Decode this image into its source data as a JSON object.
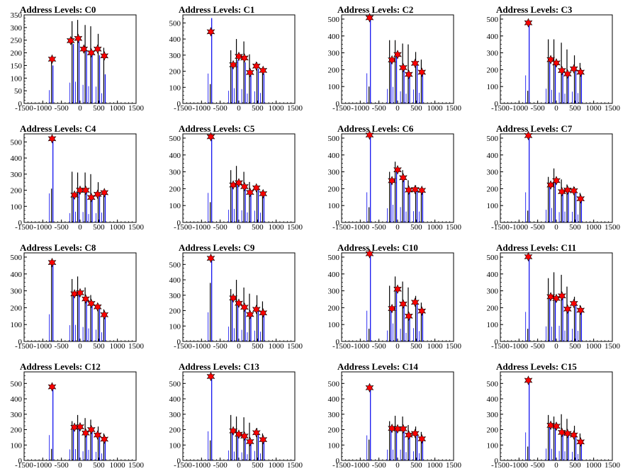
{
  "chart_data": [
    {
      "type": "bar",
      "title": "Address Levels: C0",
      "ylim": [
        0,
        350
      ],
      "yticks": [
        0,
        50,
        100,
        150,
        200,
        250,
        300,
        350
      ],
      "xlim": [
        -1500,
        1500
      ],
      "xticks": [
        -1500,
        -1000,
        -500,
        0,
        500,
        1000,
        1500
      ],
      "spikes": {
        "x": [
          -750,
          -200,
          -50,
          150,
          300,
          500,
          650
        ],
        "black": [
          165,
          325,
          330,
          310,
          305,
          275,
          220
        ],
        "blue": [
          150,
          235,
          245,
          210,
          195,
          190,
          115
        ]
      },
      "markers": {
        "x": [
          -750,
          -250,
          -50,
          100,
          300,
          470,
          650
        ],
        "y": [
          175,
          248,
          257,
          215,
          200,
          215,
          188
        ]
      }
    },
    {
      "type": "bar",
      "title": "Address Levels: C1",
      "ylim": [
        0,
        550
      ],
      "yticks": [
        0,
        100,
        200,
        300,
        400,
        500
      ],
      "xlim": [
        -1500,
        1500
      ],
      "xticks": [
        -1500,
        -1000,
        -500,
        0,
        500,
        1000,
        1500
      ],
      "spikes": {
        "x": [
          -750,
          -200,
          -50,
          150,
          300,
          500,
          650
        ],
        "black": [
          120,
          330,
          400,
          385,
          305,
          255,
          215
        ],
        "blue": [
          530,
          225,
          270,
          255,
          175,
          215,
          185
        ]
      },
      "markers": {
        "x": [
          -750,
          -150,
          0,
          150,
          300,
          470,
          650
        ],
        "y": [
          445,
          240,
          292,
          282,
          192,
          232,
          205
        ]
      }
    },
    {
      "type": "bar",
      "title": "Address Levels: C2",
      "ylim": [
        0,
        525
      ],
      "yticks": [
        0,
        100,
        200,
        300,
        400,
        500
      ],
      "xlim": [
        -1500,
        1500
      ],
      "xticks": [
        -1500,
        -1000,
        -500,
        0,
        500,
        1000,
        1500
      ],
      "spikes": {
        "x": [
          -750,
          -200,
          -50,
          150,
          300,
          500,
          650
        ],
        "black": [
          100,
          375,
          375,
          355,
          350,
          305,
          260
        ],
        "blue": [
          510,
          245,
          280,
          205,
          165,
          235,
          180
        ]
      },
      "markers": {
        "x": [
          -750,
          -150,
          0,
          150,
          300,
          470,
          650
        ],
        "y": [
          508,
          258,
          290,
          212,
          172,
          238,
          185
        ]
      }
    },
    {
      "type": "bar",
      "title": "Address Levels: C3",
      "ylim": [
        0,
        525
      ],
      "yticks": [
        0,
        100,
        200,
        300,
        400,
        500
      ],
      "xlim": [
        -1500,
        1500
      ],
      "xticks": [
        -1500,
        -1000,
        -500,
        0,
        500,
        1000,
        1500
      ],
      "spikes": {
        "x": [
          -750,
          -200,
          -50,
          150,
          300,
          500,
          650
        ],
        "black": [
          75,
          380,
          380,
          360,
          320,
          285,
          240
        ],
        "blue": [
          475,
          250,
          230,
          185,
          165,
          200,
          175
        ]
      },
      "markers": {
        "x": [
          -750,
          -150,
          0,
          150,
          300,
          470,
          650
        ],
        "y": [
          478,
          260,
          240,
          195,
          175,
          205,
          185
        ]
      }
    },
    {
      "type": "bar",
      "title": "Address Levels: C4",
      "ylim": [
        0,
        550
      ],
      "yticks": [
        0,
        100,
        200,
        300,
        400,
        500
      ],
      "xlim": [
        -1500,
        1500
      ],
      "xticks": [
        -1500,
        -1000,
        -500,
        0,
        500,
        1000,
        1500
      ],
      "spikes": {
        "x": [
          -750,
          -200,
          -50,
          150,
          300,
          500,
          650
        ],
        "black": [
          210,
          315,
          310,
          310,
          300,
          250,
          190
        ],
        "blue": [
          515,
          165,
          190,
          185,
          150,
          165,
          175
        ]
      },
      "markers": {
        "x": [
          -750,
          -150,
          0,
          150,
          300,
          470,
          650
        ],
        "y": [
          520,
          170,
          200,
          200,
          155,
          175,
          185
        ]
      }
    },
    {
      "type": "bar",
      "title": "Address Levels: C5",
      "ylim": [
        0,
        525
      ],
      "yticks": [
        0,
        100,
        200,
        300,
        400,
        500
      ],
      "xlim": [
        -1500,
        1500
      ],
      "xticks": [
        -1500,
        -1000,
        -500,
        0,
        500,
        1000,
        1500
      ],
      "spikes": {
        "x": [
          -750,
          -200,
          -50,
          150,
          300,
          500,
          650
        ],
        "black": [
          120,
          310,
          335,
          300,
          240,
          220,
          190
        ],
        "blue": [
          500,
          215,
          230,
          205,
          170,
          200,
          165
        ]
      },
      "markers": {
        "x": [
          -750,
          -150,
          0,
          150,
          300,
          470,
          650
        ],
        "y": [
          508,
          222,
          235,
          212,
          178,
          205,
          170
        ]
      }
    },
    {
      "type": "bar",
      "title": "Address Levels: C6",
      "ylim": [
        0,
        525
      ],
      "yticks": [
        0,
        100,
        200,
        300,
        400,
        500
      ],
      "xlim": [
        -1500,
        1500
      ],
      "xticks": [
        -1500,
        -1000,
        -500,
        0,
        500,
        1000,
        1500
      ],
      "spikes": {
        "x": [
          -750,
          -200,
          -50,
          150,
          300,
          500,
          650
        ],
        "black": [
          90,
          300,
          360,
          310,
          250,
          220,
          200
        ],
        "blue": [
          510,
          240,
          300,
          260,
          185,
          190,
          185
        ]
      },
      "markers": {
        "x": [
          -750,
          -150,
          0,
          150,
          300,
          470,
          650
        ],
        "y": [
          518,
          248,
          312,
          265,
          192,
          195,
          190
        ]
      }
    },
    {
      "type": "bar",
      "title": "Address Levels: C7",
      "ylim": [
        0,
        525
      ],
      "yticks": [
        0,
        100,
        200,
        300,
        400,
        500
      ],
      "xlim": [
        -1500,
        1500
      ],
      "xticks": [
        -1500,
        -1000,
        -500,
        0,
        500,
        1000,
        1500
      ],
      "spikes": {
        "x": [
          -750,
          -200,
          -50,
          150,
          300,
          500,
          650
        ],
        "black": [
          70,
          270,
          320,
          255,
          225,
          210,
          175
        ],
        "blue": [
          510,
          215,
          245,
          175,
          185,
          180,
          135
        ]
      },
      "markers": {
        "x": [
          -750,
          -150,
          0,
          150,
          300,
          470,
          650
        ],
        "y": [
          515,
          222,
          248,
          182,
          192,
          188,
          140
        ]
      }
    },
    {
      "type": "bar",
      "title": "Address Levels: C8",
      "ylim": [
        0,
        525
      ],
      "yticks": [
        0,
        100,
        200,
        300,
        400,
        500
      ],
      "xlim": [
        -1500,
        1500
      ],
      "xticks": [
        -1500,
        -1000,
        -500,
        0,
        500,
        1000,
        1500
      ],
      "spikes": {
        "x": [
          -750,
          -200,
          -50,
          150,
          300,
          500,
          650
        ],
        "black": [
          470,
          370,
          385,
          320,
          275,
          225,
          190
        ],
        "blue": [
          460,
          275,
          280,
          245,
          220,
          200,
          155
        ]
      },
      "markers": {
        "x": [
          -750,
          -150,
          0,
          150,
          300,
          470,
          650
        ],
        "y": [
          468,
          282,
          288,
          252,
          225,
          205,
          158
        ]
      }
    },
    {
      "type": "bar",
      "title": "Address Levels: C9",
      "ylim": [
        0,
        575
      ],
      "yticks": [
        0,
        100,
        200,
        300,
        400,
        500
      ],
      "xlim": [
        -1500,
        1500
      ],
      "xticks": [
        -1500,
        -1000,
        -500,
        0,
        500,
        1000,
        1500
      ],
      "spikes": {
        "x": [
          -750,
          -200,
          -50,
          150,
          300,
          500,
          650
        ],
        "black": [
          380,
          340,
          400,
          350,
          310,
          300,
          260
        ],
        "blue": [
          540,
          275,
          245,
          215,
          170,
          200,
          180
        ]
      },
      "markers": {
        "x": [
          -750,
          -150,
          0,
          150,
          300,
          470,
          650
        ],
        "y": [
          540,
          282,
          248,
          222,
          175,
          208,
          185
        ]
      }
    },
    {
      "type": "bar",
      "title": "Address Levels: C10",
      "ylim": [
        0,
        525
      ],
      "yticks": [
        0,
        100,
        200,
        300,
        400,
        500
      ],
      "xlim": [
        -1500,
        1500
      ],
      "xticks": [
        -1500,
        -1000,
        -500,
        0,
        500,
        1000,
        1500
      ],
      "spikes": {
        "x": [
          -750,
          -200,
          -50,
          150,
          300,
          500,
          650
        ],
        "black": [
          75,
          330,
          385,
          355,
          320,
          270,
          230
        ],
        "blue": [
          520,
          185,
          305,
          215,
          145,
          225,
          175
        ]
      },
      "markers": {
        "x": [
          -750,
          -150,
          0,
          150,
          300,
          470,
          650
        ],
        "y": [
          520,
          195,
          310,
          222,
          150,
          232,
          180
        ]
      }
    },
    {
      "type": "bar",
      "title": "Address Levels: C11",
      "ylim": [
        0,
        525
      ],
      "yticks": [
        0,
        100,
        200,
        300,
        400,
        500
      ],
      "xlim": [
        -1500,
        1500
      ],
      "xticks": [
        -1500,
        -1000,
        -500,
        0,
        500,
        1000,
        1500
      ],
      "spikes": {
        "x": [
          -750,
          -200,
          -50,
          150,
          300,
          500,
          650
        ],
        "black": [
          75,
          375,
          410,
          395,
          325,
          265,
          215
        ],
        "blue": [
          500,
          255,
          250,
          265,
          185,
          215,
          180
        ]
      },
      "markers": {
        "x": [
          -750,
          -150,
          0,
          150,
          300,
          470,
          650
        ],
        "y": [
          502,
          265,
          255,
          270,
          192,
          225,
          185
        ]
      }
    },
    {
      "type": "bar",
      "title": "Address Levels: C12",
      "ylim": [
        0,
        575
      ],
      "yticks": [
        0,
        100,
        200,
        300,
        400,
        500
      ],
      "xlim": [
        -1500,
        1500
      ],
      "xticks": [
        -1500,
        -1000,
        -500,
        0,
        500,
        1000,
        1500
      ],
      "spikes": {
        "x": [
          -750,
          -200,
          -50,
          150,
          300,
          500,
          650
        ],
        "black": [
          75,
          255,
          295,
          275,
          265,
          220,
          175
        ],
        "blue": [
          470,
          205,
          210,
          170,
          195,
          160,
          130
        ]
      },
      "markers": {
        "x": [
          -750,
          -150,
          0,
          150,
          300,
          470,
          650
        ],
        "y": [
          478,
          215,
          218,
          178,
          200,
          165,
          138
        ]
      }
    },
    {
      "type": "bar",
      "title": "Address Levels: C13",
      "ylim": [
        0,
        575
      ],
      "yticks": [
        0,
        100,
        200,
        300,
        400,
        500
      ],
      "xlim": [
        -1500,
        1500
      ],
      "xticks": [
        -1500,
        -1000,
        -500,
        0,
        500,
        1000,
        1500
      ],
      "spikes": {
        "x": [
          -750,
          -200,
          -50,
          150,
          300,
          500,
          650
        ],
        "black": [
          130,
          295,
          285,
          280,
          245,
          210,
          175
        ],
        "blue": [
          540,
          185,
          165,
          150,
          115,
          175,
          130
        ]
      },
      "markers": {
        "x": [
          -750,
          -150,
          0,
          150,
          300,
          470,
          650
        ],
        "y": [
          545,
          192,
          170,
          158,
          122,
          180,
          135
        ]
      }
    },
    {
      "type": "bar",
      "title": "Address Levels: C14",
      "ylim": [
        0,
        575
      ],
      "yticks": [
        0,
        100,
        200,
        300,
        400,
        500
      ],
      "xlim": [
        -1500,
        1500
      ],
      "xticks": [
        -1500,
        -1000,
        -500,
        0,
        500,
        1000,
        1500
      ],
      "spikes": {
        "x": [
          -750,
          -200,
          -50,
          150,
          300,
          500,
          650
        ],
        "black": [
          135,
          255,
          290,
          285,
          230,
          220,
          185
        ],
        "blue": [
          465,
          200,
          200,
          200,
          155,
          170,
          135
        ]
      },
      "markers": {
        "x": [
          -750,
          -150,
          0,
          150,
          300,
          470,
          650
        ],
        "y": [
          472,
          208,
          205,
          205,
          165,
          175,
          140
        ]
      }
    },
    {
      "type": "bar",
      "title": "Address Levels: C15",
      "ylim": [
        0,
        575
      ],
      "yticks": [
        0,
        100,
        200,
        300,
        400,
        500
      ],
      "xlim": [
        -1500,
        1500
      ],
      "xticks": [
        -1500,
        -1000,
        -500,
        0,
        500,
        1000,
        1500
      ],
      "spikes": {
        "x": [
          -750,
          -200,
          -50,
          150,
          300,
          500,
          650
        ],
        "black": [
          90,
          295,
          285,
          300,
          270,
          225,
          175
        ],
        "blue": [
          520,
          220,
          215,
          175,
          170,
          160,
          120
        ]
      },
      "markers": {
        "x": [
          -750,
          -150,
          0,
          150,
          300,
          470,
          650
        ],
        "y": [
          520,
          228,
          222,
          182,
          175,
          165,
          120
        ]
      }
    }
  ]
}
